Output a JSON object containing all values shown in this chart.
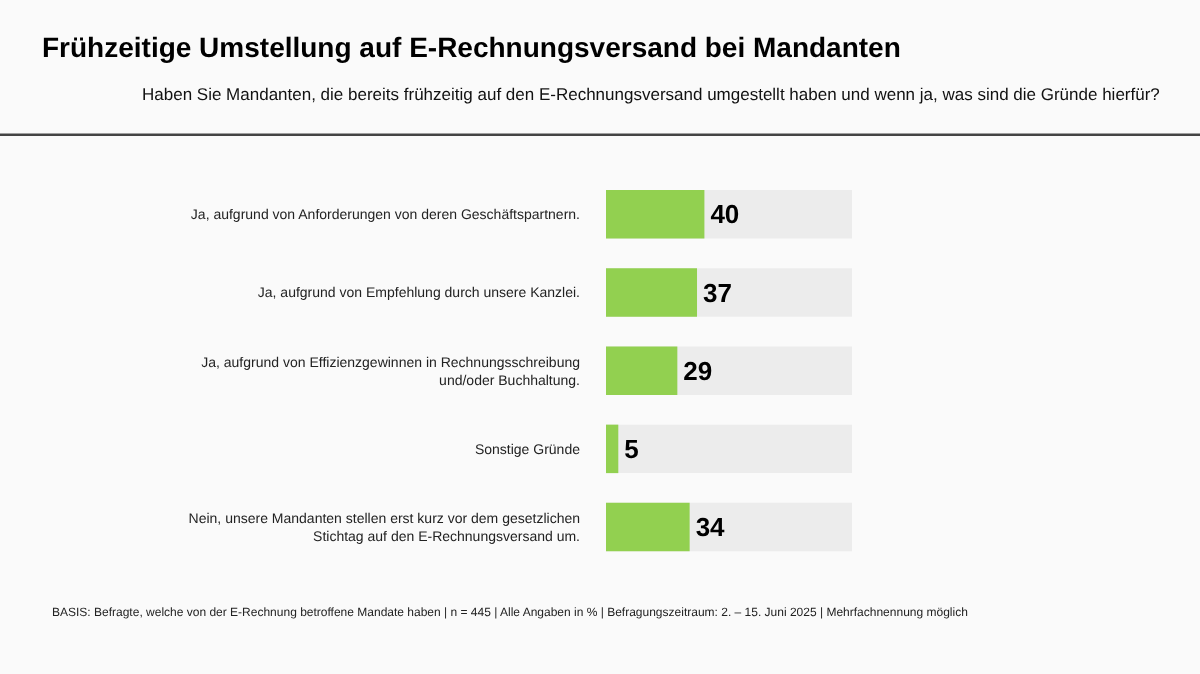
{
  "chart_data": {
    "type": "bar",
    "orientation": "horizontal",
    "title": "Frühzeitige Umstellung auf E-Rechnungsversand bei Mandanten",
    "subtitle": "Haben Sie Mandanten, die bereits frühzeitig auf den E-Rechnungsversand umgestellt haben und wenn ja, was sind die Gründe hierfür?",
    "categories": [
      "Ja, aufgrund von Anforderungen von deren Geschäftspartnern.",
      "Ja, aufgrund von Empfehlung durch unsere Kanzlei.",
      "Ja, aufgrund von Effizienzgewinnen in Rechnungsschreibung und/oder Buchhaltung.",
      "Sonstige Gründe",
      "Nein, unsere Mandanten stellen erst kurz vor dem gesetzlichen Stichtag auf den E-Rechnungsversand um."
    ],
    "values": [
      40,
      37,
      29,
      5,
      34
    ],
    "color": "#92d050",
    "xlim": [
      0,
      100
    ],
    "tick_labels": false,
    "data_labels": true,
    "grid": false,
    "legend": false,
    "annotations": [
      "BASIS: Befragte, welche von der E-Rechnung betroffene Mandate haben | n = 445 | Alle Angaben in % | Befragungszeitraum: 2. – 15. Juni 2025 | Mehrfachnennung möglich"
    ]
  }
}
